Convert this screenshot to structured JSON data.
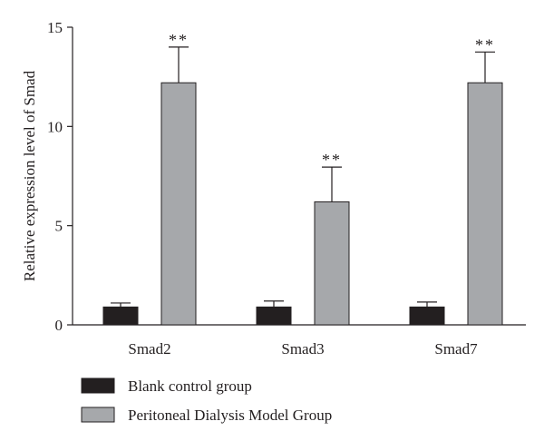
{
  "chart_data": {
    "type": "bar",
    "title": "",
    "xlabel": "",
    "ylabel": "Relative expression level of Smad",
    "ylim": [
      0,
      15
    ],
    "yticks": [
      0,
      5,
      10,
      15
    ],
    "grid": false,
    "legend_position": "bottom-left",
    "categories": [
      "Smad2",
      "Smad3",
      "Smad7"
    ],
    "series": [
      {
        "name": "Blank control group",
        "color": "#231f20",
        "values": [
          0.9,
          0.9,
          0.9
        ],
        "errors": [
          0.2,
          0.3,
          0.25
        ],
        "annotations": [
          "",
          "",
          ""
        ]
      },
      {
        "name": "Peritoneal Dialysis Model Group",
        "color": "#a6a8ab",
        "values": [
          12.2,
          6.2,
          12.2
        ],
        "errors": [
          1.8,
          1.75,
          1.55
        ],
        "annotations": [
          "**",
          "**",
          "**"
        ]
      }
    ]
  }
}
